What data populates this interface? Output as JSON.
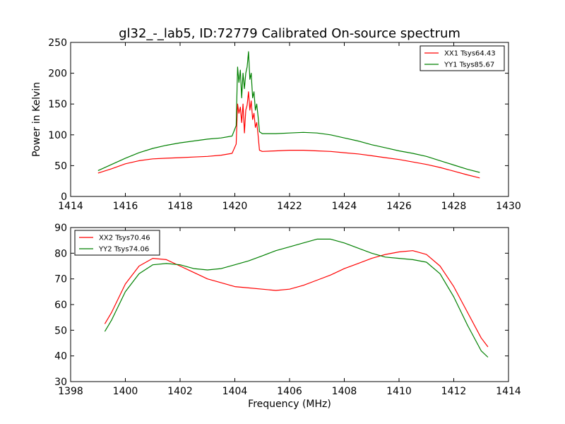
{
  "figure": {
    "title": "gl32_-_lab5, ID:72779 Calibrated On-source spectrum"
  },
  "colors": {
    "red": "#ff0000",
    "green": "#008000"
  },
  "chart_data": [
    {
      "type": "line",
      "title": "gl32_-_lab5, ID:72779 Calibrated On-source spectrum",
      "xlabel": "",
      "ylabel": "Power in Kelvin",
      "xlim": [
        1414,
        1430
      ],
      "ylim": [
        0,
        250
      ],
      "xticks": [
        1414,
        1416,
        1418,
        1420,
        1422,
        1424,
        1426,
        1428,
        1430
      ],
      "yticks": [
        0,
        50,
        100,
        150,
        200,
        250
      ],
      "legend_position": "top-right",
      "grid": false,
      "series": [
        {
          "name": "XX1 Tsys64.43",
          "color": "#ff0000",
          "x": [
            1415.0,
            1415.5,
            1416.0,
            1416.5,
            1417.0,
            1417.5,
            1418.0,
            1418.5,
            1419.0,
            1419.5,
            1419.9,
            1420.05,
            1420.1,
            1420.15,
            1420.2,
            1420.25,
            1420.3,
            1420.35,
            1420.4,
            1420.45,
            1420.5,
            1420.55,
            1420.6,
            1420.65,
            1420.7,
            1420.75,
            1420.8,
            1420.85,
            1420.9,
            1421.0,
            1421.5,
            1422.0,
            1422.5,
            1423.0,
            1423.5,
            1424.0,
            1424.5,
            1425.0,
            1425.5,
            1426.0,
            1426.5,
            1427.0,
            1427.5,
            1428.0,
            1428.5,
            1428.95
          ],
          "values": [
            38,
            45,
            53,
            58,
            61,
            62,
            63,
            64,
            65,
            67,
            70,
            85,
            150,
            135,
            145,
            120,
            150,
            103,
            140,
            148,
            170,
            140,
            155,
            125,
            135,
            112,
            120,
            100,
            75,
            73,
            74,
            75,
            75,
            74,
            73,
            71,
            69,
            66,
            63,
            60,
            56,
            52,
            47,
            41,
            35,
            30
          ]
        },
        {
          "name": "YY1 Tsys85.67",
          "color": "#008000",
          "x": [
            1415.0,
            1415.5,
            1416.0,
            1416.5,
            1417.0,
            1417.5,
            1418.0,
            1418.5,
            1419.0,
            1419.5,
            1419.9,
            1420.05,
            1420.1,
            1420.15,
            1420.2,
            1420.25,
            1420.3,
            1420.35,
            1420.4,
            1420.45,
            1420.5,
            1420.55,
            1420.6,
            1420.65,
            1420.7,
            1420.75,
            1420.8,
            1420.85,
            1420.9,
            1421.0,
            1421.5,
            1422.0,
            1422.5,
            1423.0,
            1423.5,
            1424.0,
            1424.5,
            1425.0,
            1425.5,
            1426.0,
            1426.5,
            1427.0,
            1427.5,
            1428.0,
            1428.5,
            1428.95
          ],
          "values": [
            42,
            52,
            62,
            71,
            78,
            83,
            87,
            90,
            93,
            95,
            98,
            115,
            210,
            185,
            205,
            160,
            200,
            175,
            200,
            210,
            235,
            190,
            200,
            160,
            170,
            140,
            150,
            130,
            105,
            102,
            102,
            103,
            104,
            103,
            100,
            95,
            90,
            84,
            79,
            74,
            70,
            65,
            58,
            51,
            44,
            39
          ]
        }
      ]
    },
    {
      "type": "line",
      "title": "",
      "xlabel": "Frequency (MHz)",
      "ylabel": "",
      "xlim": [
        1398,
        1414
      ],
      "ylim": [
        30,
        90
      ],
      "xticks": [
        1398,
        1400,
        1402,
        1404,
        1406,
        1408,
        1410,
        1412,
        1414
      ],
      "yticks": [
        30,
        40,
        50,
        60,
        70,
        80,
        90
      ],
      "legend_position": "top-left",
      "grid": false,
      "series": [
        {
          "name": "XX2 Tsys70.46",
          "color": "#ff0000",
          "x": [
            1399.25,
            1399.5,
            1400.0,
            1400.5,
            1401.0,
            1401.5,
            1402.0,
            1402.5,
            1403.0,
            1403.5,
            1404.0,
            1404.5,
            1405.0,
            1405.5,
            1406.0,
            1406.5,
            1407.0,
            1407.5,
            1408.0,
            1408.5,
            1409.0,
            1409.5,
            1410.0,
            1410.5,
            1411.0,
            1411.5,
            1412.0,
            1412.5,
            1413.0,
            1413.25
          ],
          "values": [
            52.5,
            57,
            68,
            75,
            78,
            77.5,
            75,
            72.5,
            70,
            68.5,
            67,
            66.5,
            66,
            65.5,
            66,
            67.5,
            69.5,
            71.5,
            74,
            76,
            78,
            79.5,
            80.5,
            81,
            79.5,
            75,
            67,
            57,
            47,
            43.5
          ]
        },
        {
          "name": "YY2 Tsys74.06",
          "color": "#008000",
          "x": [
            1399.25,
            1399.5,
            1400.0,
            1400.5,
            1401.0,
            1401.5,
            1402.0,
            1402.5,
            1403.0,
            1403.5,
            1404.0,
            1404.5,
            1405.0,
            1405.5,
            1406.0,
            1406.5,
            1407.0,
            1407.5,
            1408.0,
            1408.5,
            1409.0,
            1409.5,
            1410.0,
            1410.5,
            1411.0,
            1411.5,
            1412.0,
            1412.5,
            1413.0,
            1413.25
          ],
          "values": [
            49.5,
            54,
            65,
            72,
            75.5,
            76,
            75.5,
            74,
            73.5,
            74,
            75.5,
            77,
            79,
            81,
            82.5,
            84,
            85.5,
            85.5,
            84,
            82,
            80,
            78.5,
            78,
            77.5,
            76.5,
            72,
            63,
            52,
            42,
            39.5
          ]
        }
      ]
    }
  ]
}
